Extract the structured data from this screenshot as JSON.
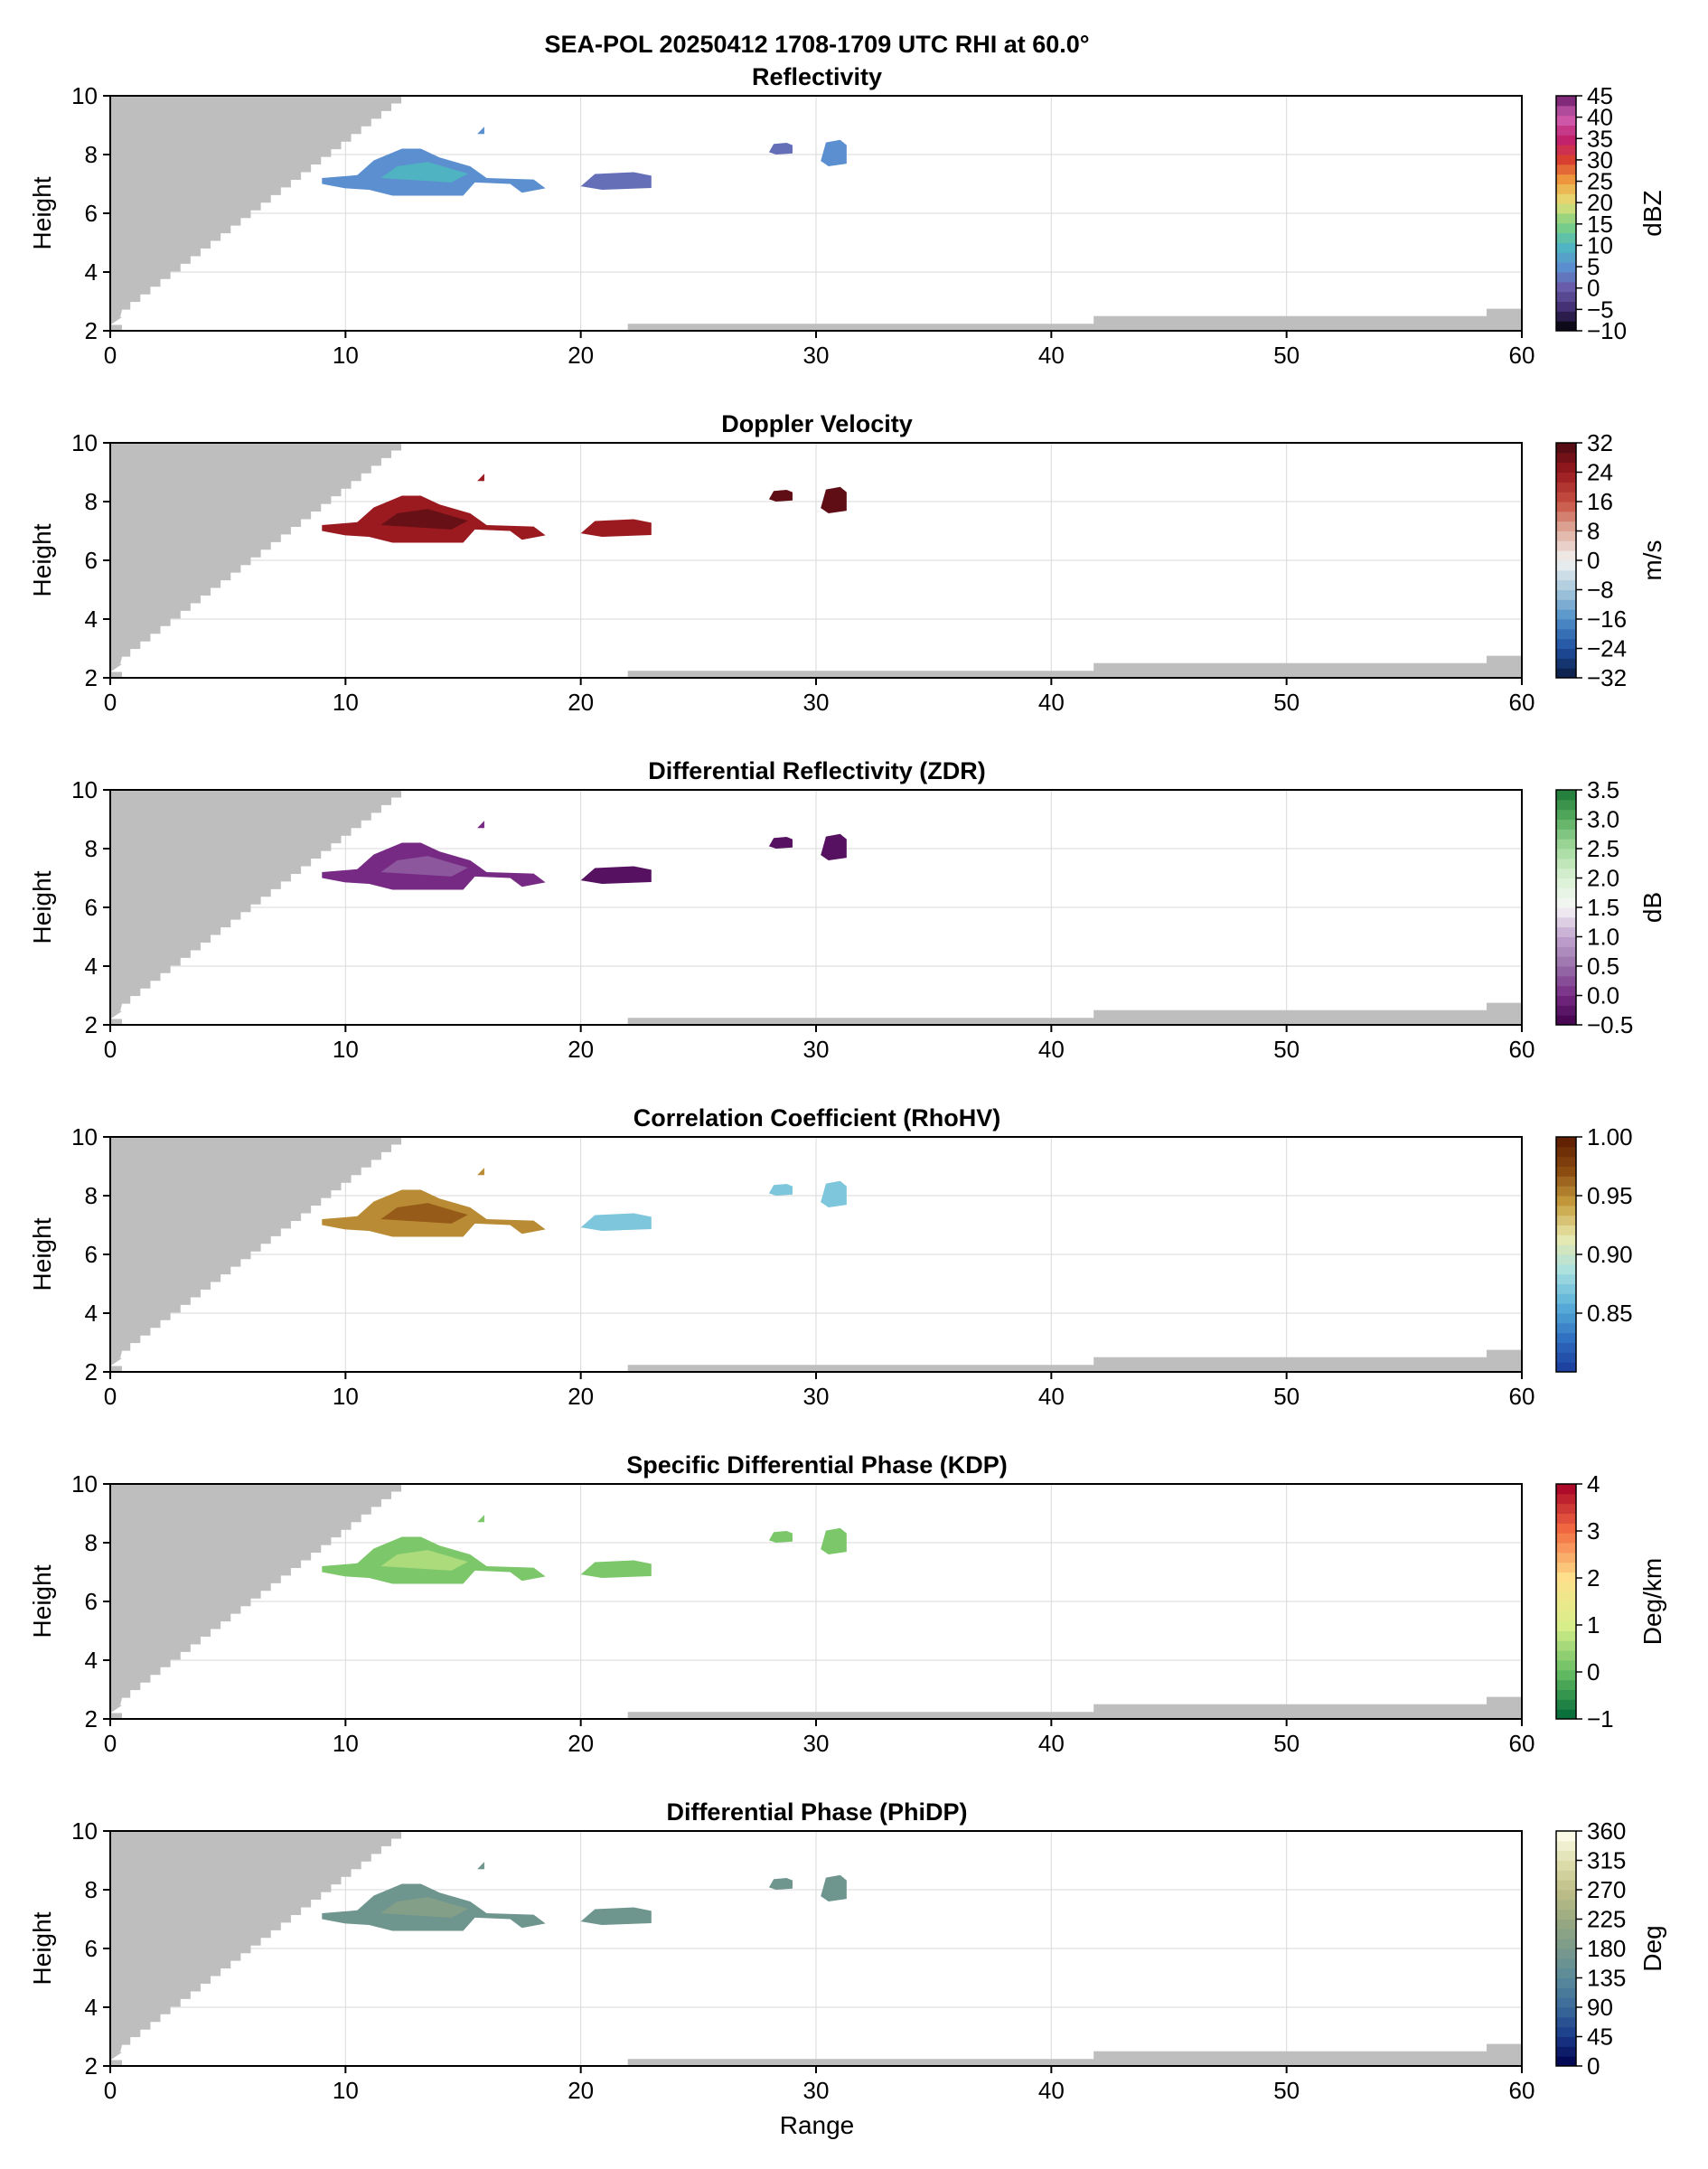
{
  "figure": {
    "suptitle": "SEA-POL 20250412 1708-1709 UTC RHI at 60.0°",
    "xlabel": "Range"
  },
  "chart_data": [
    {
      "type": "heatmap",
      "title": "Reflectivity",
      "xlabel": "",
      "ylabel": "Height",
      "xlim": [
        0,
        60
      ],
      "ylim": [
        2,
        10
      ],
      "xticks": [
        "0",
        "10",
        "20",
        "30",
        "40",
        "50",
        "60"
      ],
      "yticks": [
        "2",
        "4",
        "6",
        "8",
        "10"
      ],
      "colorbar": {
        "label": "dBZ",
        "ticks": [
          "-10",
          "-5",
          "0",
          "5",
          "10",
          "15",
          "20",
          "25",
          "30",
          "35",
          "40",
          "45"
        ],
        "range": [
          -10,
          45
        ],
        "colors": [
          "#000000",
          "#3d2a6e",
          "#6a5aa8",
          "#5b8fd0",
          "#4fb8c0",
          "#7fd07f",
          "#e6e07a",
          "#f0a040",
          "#d94030",
          "#c02070",
          "#d060b0",
          "#6a1a6a"
        ]
      },
      "grid": true,
      "features": [
        {
          "kind": "cloud-core",
          "x": [
            9,
            18.5
          ],
          "y": [
            6.6,
            8.2
          ],
          "value": 5
        },
        {
          "kind": "patch",
          "x": [
            20,
            23
          ],
          "y": [
            6.8,
            7.4
          ],
          "value": 2
        },
        {
          "kind": "patch",
          "x": [
            28,
            29
          ],
          "y": [
            8.0,
            8.4
          ],
          "value": 2
        },
        {
          "kind": "patch",
          "x": [
            30.2,
            31.3
          ],
          "y": [
            7.6,
            8.5
          ],
          "value": 5
        }
      ]
    },
    {
      "type": "heatmap",
      "title": "Doppler Velocity",
      "xlabel": "",
      "ylabel": "Height",
      "xlim": [
        0,
        60
      ],
      "ylim": [
        2,
        10
      ],
      "xticks": [
        "0",
        "10",
        "20",
        "30",
        "40",
        "50",
        "60"
      ],
      "yticks": [
        "2",
        "4",
        "6",
        "8",
        "10"
      ],
      "colorbar": {
        "label": "m/s",
        "ticks": [
          "-32",
          "-24",
          "-16",
          "-8",
          "0",
          "8",
          "16",
          "24",
          "32"
        ],
        "range": [
          -32,
          32
        ],
        "colors": [
          "#0a1a40",
          "#1f4fa0",
          "#4f8fc8",
          "#a8c8dc",
          "#f2f2f2",
          "#e0b0a0",
          "#c85040",
          "#9a1a20",
          "#4a0a10"
        ]
      },
      "grid": true,
      "features": [
        {
          "kind": "cloud-core",
          "x": [
            9,
            18.5
          ],
          "y": [
            6.6,
            8.2
          ],
          "value": 24
        },
        {
          "kind": "patch",
          "x": [
            20,
            23
          ],
          "y": [
            6.8,
            7.4
          ],
          "value": 24
        },
        {
          "kind": "patch",
          "x": [
            28,
            29
          ],
          "y": [
            8.0,
            8.4
          ],
          "value": 30
        },
        {
          "kind": "patch",
          "x": [
            30.2,
            31.3
          ],
          "y": [
            7.6,
            8.5
          ],
          "value": 30
        }
      ]
    },
    {
      "type": "heatmap",
      "title": "Differential Reflectivity (ZDR)",
      "xlabel": "",
      "ylabel": "Height",
      "xlim": [
        0,
        60
      ],
      "ylim": [
        2,
        10
      ],
      "xticks": [
        "0",
        "10",
        "20",
        "30",
        "40",
        "50",
        "60"
      ],
      "yticks": [
        "2",
        "4",
        "6",
        "8",
        "10"
      ],
      "colorbar": {
        "label": "dB",
        "ticks": [
          "-0.5",
          "0.0",
          "0.5",
          "1.0",
          "1.5",
          "2.0",
          "2.5",
          "3.0",
          "3.5"
        ],
        "range": [
          -0.5,
          3.5
        ],
        "colors": [
          "#40004b",
          "#762a83",
          "#9970ab",
          "#c2a5cf",
          "#f7f7f7",
          "#d9f0d3",
          "#a6dba0",
          "#5aae61",
          "#1b7837"
        ]
      },
      "grid": true,
      "features": [
        {
          "kind": "cloud-core",
          "x": [
            9,
            18.5
          ],
          "y": [
            6.6,
            8.2
          ],
          "value": 0.0
        },
        {
          "kind": "patch",
          "x": [
            20,
            23
          ],
          "y": [
            6.8,
            7.4
          ],
          "value": -0.3
        },
        {
          "kind": "patch",
          "x": [
            28,
            29
          ],
          "y": [
            8.0,
            8.4
          ],
          "value": -0.3
        },
        {
          "kind": "patch",
          "x": [
            30.2,
            31.3
          ],
          "y": [
            7.6,
            8.5
          ],
          "value": -0.3
        }
      ]
    },
    {
      "type": "heatmap",
      "title": "Correlation Coefficient (RhoHV)",
      "xlabel": "",
      "ylabel": "Height",
      "xlim": [
        0,
        60
      ],
      "ylim": [
        2,
        10
      ],
      "xticks": [
        "0",
        "10",
        "20",
        "30",
        "40",
        "50",
        "60"
      ],
      "yticks": [
        "2",
        "4",
        "6",
        "8",
        "10"
      ],
      "colorbar": {
        "label": "",
        "ticks": [
          "0.85",
          "0.90",
          "0.95",
          "1.00"
        ],
        "range": [
          0.8,
          1.0
        ],
        "colors": [
          "#1a3a9a",
          "#3070c0",
          "#5ab0d8",
          "#a8e0e0",
          "#e8e8b0",
          "#c8a040",
          "#8a4a10",
          "#5a1a00"
        ]
      },
      "grid": true,
      "features": [
        {
          "kind": "cloud-core",
          "x": [
            9,
            18.5
          ],
          "y": [
            6.6,
            8.2
          ],
          "value": 0.95
        },
        {
          "kind": "patch",
          "x": [
            20,
            23
          ],
          "y": [
            6.8,
            7.4
          ],
          "value": 0.87
        },
        {
          "kind": "patch",
          "x": [
            28,
            29
          ],
          "y": [
            8.0,
            8.4
          ],
          "value": 0.87
        },
        {
          "kind": "patch",
          "x": [
            30.2,
            31.3
          ],
          "y": [
            7.6,
            8.5
          ],
          "value": 0.87
        }
      ]
    },
    {
      "type": "heatmap",
      "title": "Specific Differential Phase (KDP)",
      "xlabel": "",
      "ylabel": "Height",
      "xlim": [
        0,
        60
      ],
      "ylim": [
        2,
        10
      ],
      "xticks": [
        "0",
        "10",
        "20",
        "30",
        "40",
        "50",
        "60"
      ],
      "yticks": [
        "2",
        "4",
        "6",
        "8",
        "10"
      ],
      "colorbar": {
        "label": "Deg/km",
        "ticks": [
          "-1",
          "0",
          "1",
          "2",
          "3",
          "4"
        ],
        "range": [
          -1,
          4
        ],
        "colors": [
          "#006837",
          "#66bd63",
          "#d9ef8b",
          "#fee08b",
          "#f46d43",
          "#a50026"
        ]
      },
      "grid": true,
      "features": [
        {
          "kind": "cloud-core",
          "x": [
            9,
            18.5
          ],
          "y": [
            6.6,
            8.2
          ],
          "value": 0.2
        },
        {
          "kind": "patch",
          "x": [
            20,
            23
          ],
          "y": [
            6.8,
            7.4
          ],
          "value": 0.2
        },
        {
          "kind": "patch",
          "x": [
            28,
            29
          ],
          "y": [
            8.0,
            8.4
          ],
          "value": 0.2
        },
        {
          "kind": "patch",
          "x": [
            30.2,
            31.3
          ],
          "y": [
            7.6,
            8.5
          ],
          "value": 0.2
        }
      ]
    },
    {
      "type": "heatmap",
      "title": "Differential Phase (PhiDP)",
      "xlabel": "Range",
      "ylabel": "Height",
      "xlim": [
        0,
        60
      ],
      "ylim": [
        2,
        10
      ],
      "xticks": [
        "0",
        "10",
        "20",
        "30",
        "40",
        "50",
        "60"
      ],
      "yticks": [
        "2",
        "4",
        "6",
        "8",
        "10"
      ],
      "colorbar": {
        "label": "Deg",
        "ticks": [
          "0",
          "45",
          "90",
          "135",
          "180",
          "225",
          "270",
          "315",
          "360"
        ],
        "range": [
          0,
          360
        ],
        "colors": [
          "#00004a",
          "#1a3a8a",
          "#3a6a9a",
          "#5a8a9a",
          "#7a9a8a",
          "#9aaa80",
          "#c0c08a",
          "#e0e0b0",
          "#fffff0"
        ]
      },
      "grid": true,
      "features": [
        {
          "kind": "cloud-core",
          "x": [
            9,
            18.5
          ],
          "y": [
            6.6,
            8.2
          ],
          "value": 165
        },
        {
          "kind": "patch",
          "x": [
            20,
            23
          ],
          "y": [
            6.8,
            7.4
          ],
          "value": 165
        },
        {
          "kind": "patch",
          "x": [
            28,
            29
          ],
          "y": [
            8.0,
            8.4
          ],
          "value": 165
        },
        {
          "kind": "patch",
          "x": [
            30.2,
            31.3
          ],
          "y": [
            7.6,
            8.5
          ],
          "value": 165
        }
      ]
    }
  ],
  "colors": {
    "blocked": "#bebebe",
    "grid": "#d9d9d9",
    "axes": "#000000"
  }
}
